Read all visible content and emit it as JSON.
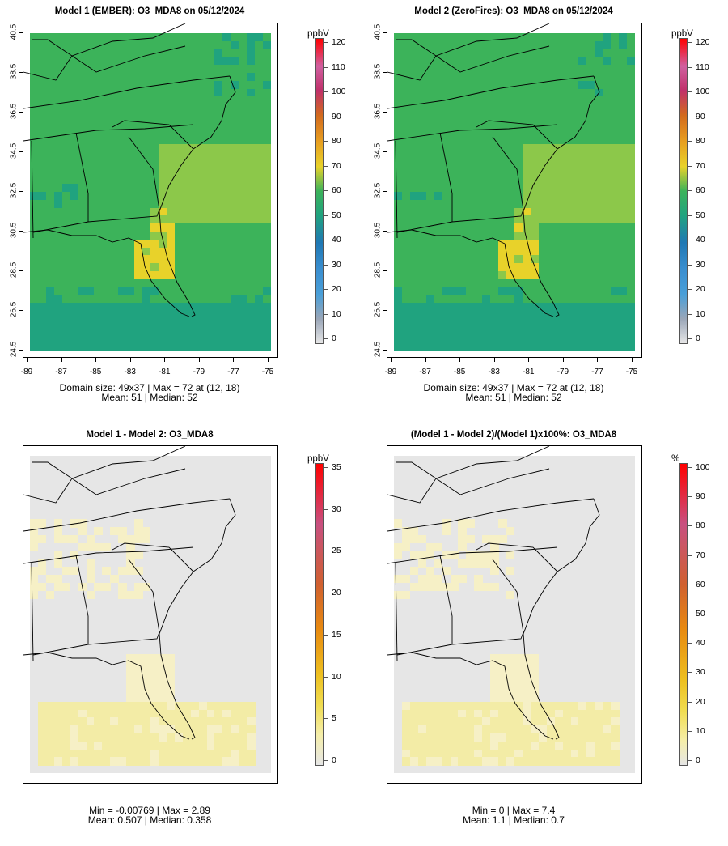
{
  "panels": [
    {
      "id": "p1",
      "title": "Model 1 (EMBER): O3_MDA8 on 05/12/2024",
      "kind": "o3",
      "stat1": "Domain size: 49x37 | Max = 72 at (12, 18)",
      "stat2": "Mean: 51 |  Median: 52",
      "unit": "ppbV",
      "cbar_labels": [
        "120",
        "110",
        "100",
        "90",
        "80",
        "70",
        "60",
        "50",
        "40",
        "30",
        "20",
        "10",
        "0"
      ]
    },
    {
      "id": "p2",
      "title": "Model 2 (ZeroFires): O3_MDA8 on 05/12/2024",
      "kind": "o3",
      "stat1": "Domain size: 49x37 | Max = 72 at (12, 18)",
      "stat2": "Mean: 51 |  Median: 52",
      "unit": "ppbV",
      "cbar_labels": [
        "120",
        "110",
        "100",
        "90",
        "80",
        "70",
        "60",
        "50",
        "40",
        "30",
        "20",
        "10",
        "0"
      ]
    },
    {
      "id": "p3",
      "title": "Model 1 - Model 2: O3_MDA8",
      "kind": "diff",
      "stat1": "Min = -0.00769 | Max = 2.89",
      "stat2": "Mean: 0.507 |  Median: 0.358",
      "unit": "ppbV",
      "cbar_labels": [
        "35",
        "30",
        "25",
        "20",
        "15",
        "10",
        "5",
        "0"
      ]
    },
    {
      "id": "p4",
      "title": "(Model 1 - Model 2)/(Model 1)x100%: O3_MDA8",
      "kind": "pct",
      "stat1": "Min = 0 | Max = 7.4",
      "stat2": "Mean: 1.1 |  Median: 0.7",
      "unit": "%",
      "cbar_labels": [
        "100",
        "90",
        "80",
        "70",
        "60",
        "50",
        "40",
        "30",
        "20",
        "10",
        "0"
      ]
    }
  ],
  "axes": {
    "lat_ticks": [
      "40.5",
      "38.5",
      "36.5",
      "34.5",
      "32.5",
      "30.5",
      "28.5",
      "26.5",
      "24.5"
    ],
    "lon_ticks": [
      "-89",
      "-87",
      "-85",
      "-83",
      "-81",
      "-79",
      "-77",
      "-75"
    ]
  },
  "colors": {
    "ramp": [
      "#e6e6e6",
      "#9aa6b8",
      "#4a9fd8",
      "#1f78b4",
      "#20a37f",
      "#3cb35a",
      "#8cc84a",
      "#e8d22a",
      "#e8a020",
      "#d2691e",
      "#c0306a",
      "#d060a0",
      "#ff0000"
    ],
    "sea_blue": "#1f78b4",
    "diff_ramp": [
      "#e6e6e6",
      "#f5eeaa",
      "#f0dc50",
      "#eec020",
      "#e88a10",
      "#d06030",
      "#c85080",
      "#ff0000"
    ]
  }
}
